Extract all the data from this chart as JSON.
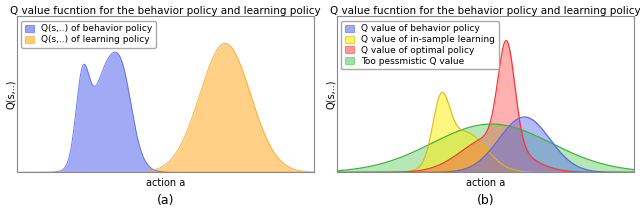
{
  "title_a": "Q value fucntion for the behavior policy and learning policy",
  "title_b": "Q value fucntion for the behavior policy and learning policy",
  "xlabel": "action a",
  "ylabel": "Q(s,..)",
  "caption_a": "(a)",
  "caption_b": "(b)",
  "legend_a": [
    {
      "label": "Q(s,..) of behavior policy",
      "color": "#5566ee",
      "alpha": 0.55
    },
    {
      "label": "Q(s,..) of learning policy",
      "color": "#ffaa22",
      "alpha": 0.55
    }
  ],
  "legend_b": [
    {
      "label": "Q value of behavior policy",
      "color": "#5566ee",
      "alpha": 0.5
    },
    {
      "label": "Q value of in-sample learning",
      "color": "#ffee00",
      "alpha": 0.5
    },
    {
      "label": "Q value of optimal policy",
      "color": "#ff3333",
      "alpha": 0.5
    },
    {
      "label": "Too pessmistic Q value",
      "color": "#33bb33",
      "alpha": 0.35
    }
  ],
  "title_fontsize": 7.5,
  "label_fontsize": 7,
  "legend_fontsize": 6.5
}
